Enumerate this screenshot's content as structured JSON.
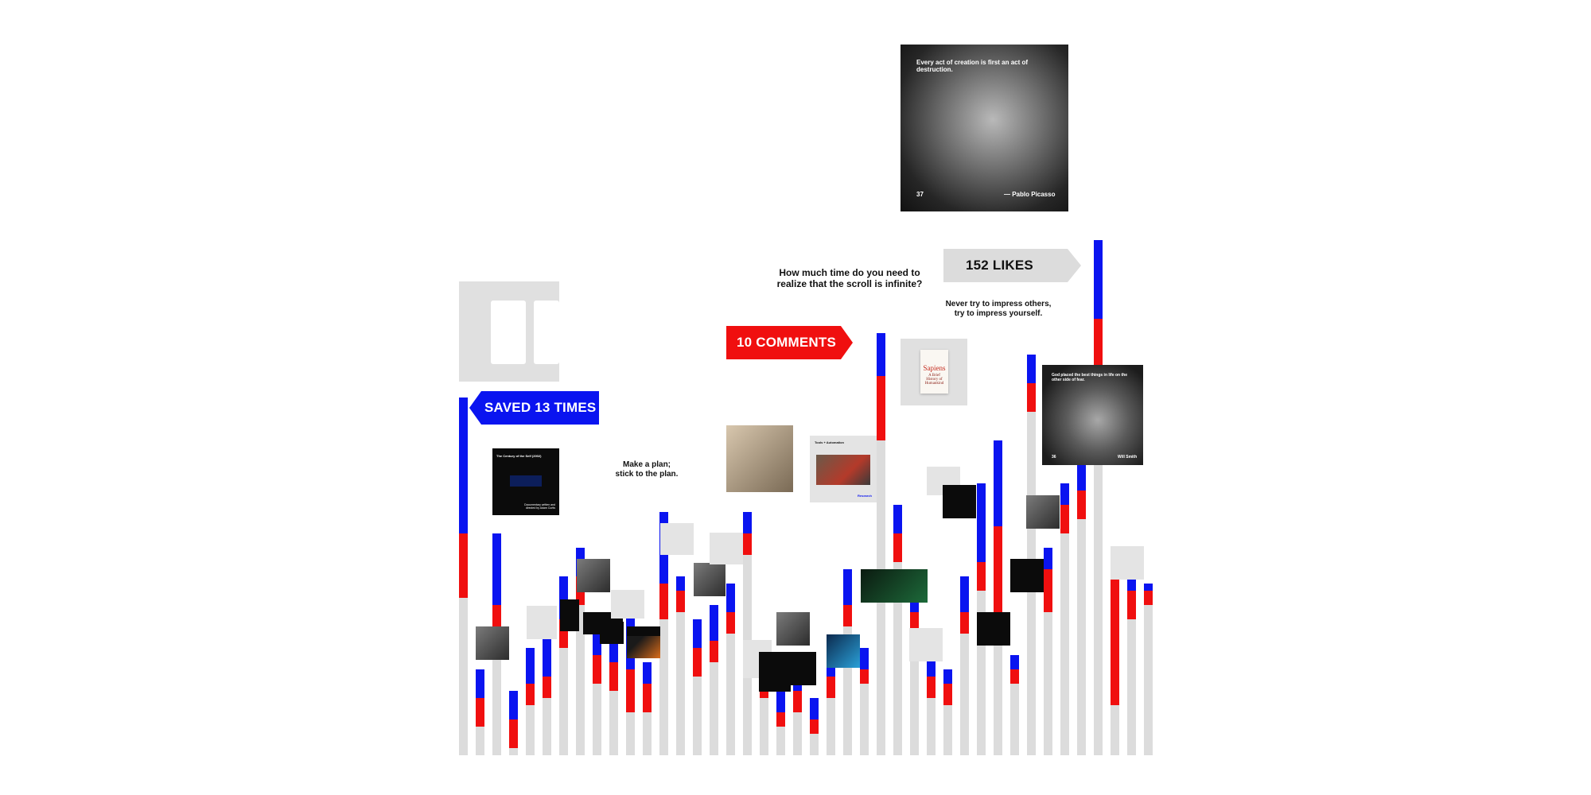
{
  "chart_data": {
    "type": "bar",
    "title": "",
    "xlabel": "",
    "ylabel": "",
    "series": [
      {
        "values": [
          0.5,
          0.12,
          0.31,
          0.09,
          0.15,
          0.17,
          0.25,
          0.29,
          0.19,
          0.16,
          0.21,
          0.13,
          0.34,
          0.25,
          0.19,
          0.21,
          0.24,
          0.34,
          0.15,
          0.09,
          0.12,
          0.08,
          0.15,
          0.26,
          0.15,
          0.59,
          0.35,
          0.24,
          0.15,
          0.12,
          0.25,
          0.38,
          0.44,
          0.14,
          0.56,
          0.29,
          0.38,
          0.45,
          0.72,
          0.27,
          0.25,
          0.24
        ]
      }
    ],
    "blue_fraction": [
      0.19,
      0.04,
      0.1,
      0.04,
      0.05,
      0.06,
      0.06,
      0.04,
      0.05,
      0.03,
      0.09,
      0.03,
      0.1,
      0.02,
      0.04,
      0.05,
      0.04,
      0.03,
      0.04,
      0.03,
      0.03,
      0.03,
      0.04,
      0.05,
      0.03,
      0.06,
      0.04,
      0.04,
      0.04,
      0.02,
      0.05,
      0.11,
      0.12,
      0.02,
      0.04,
      0.03,
      0.03,
      0.08,
      0.11,
      0.02,
      0.02,
      0.01
    ],
    "red_fraction": [
      0.09,
      0.04,
      0.05,
      0.04,
      0.03,
      0.03,
      0.04,
      0.04,
      0.04,
      0.04,
      0.06,
      0.04,
      0.05,
      0.03,
      0.04,
      0.03,
      0.03,
      0.03,
      0.03,
      0.02,
      0.03,
      0.02,
      0.03,
      0.03,
      0.02,
      0.09,
      0.04,
      0.04,
      0.03,
      0.03,
      0.03,
      0.04,
      0.16,
      0.02,
      0.04,
      0.06,
      0.04,
      0.04,
      0.11,
      0.18,
      0.04,
      0.02
    ],
    "colors": {
      "bar": "#dcdcdc",
      "saves": "#0a14f0",
      "comments": "#f00f0f",
      "likes": "#dcdcdc"
    },
    "grid": false,
    "legend": "none"
  },
  "flags": {
    "saved": "SAVED 13 TIMES",
    "comments": "10 COMMENTS",
    "likes": "152 LIKES"
  },
  "quotes": {
    "scroll": "How much time do you need to realize that the scroll is infinite?",
    "impress": "Never try to impress others, try to impress yourself.",
    "plan": "Make a plan; stick to the plan."
  },
  "posts": {
    "picasso": {
      "quote": "Every act of creation is first an act of destruction.",
      "number": "37",
      "author": "— Pablo Picasso"
    },
    "willsmith": {
      "quote": "God placed the best things in life on the other side of fear.",
      "number": "36",
      "author": "Will Smith"
    },
    "sapiens": {
      "title": "Sapiens",
      "subtitle": "A Brief History of Humankind"
    },
    "documentary": {
      "title": "The Century of the Self (2002)",
      "caption": "Documentary written and directed by Adam Curtis"
    },
    "tools": {
      "title": "Tools + Automation",
      "link": "Research"
    }
  }
}
